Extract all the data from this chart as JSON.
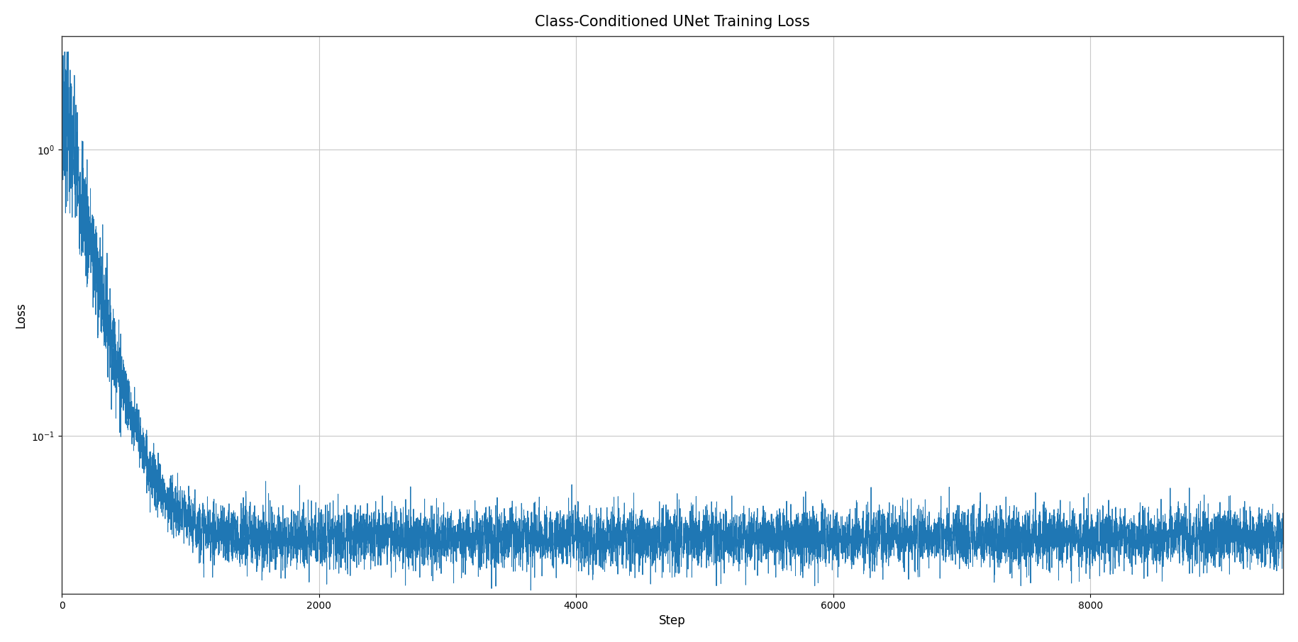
{
  "title": "Class-Conditioned UNet Training Loss",
  "xlabel": "Step",
  "ylabel": "Loss",
  "line_color": "#1f77b4",
  "line_width": 0.7,
  "background_color": "#ffffff",
  "grid_color": "#c8c8c8",
  "grid_linewidth": 0.8,
  "xlim": [
    0,
    9500
  ],
  "ylim_log": [
    0.028,
    2.5
  ],
  "total_steps": 9500,
  "title_fontsize": 15,
  "label_fontsize": 12,
  "figsize": [
    18.3,
    9.06
  ],
  "dpi": 100,
  "initial_loss": 1.55,
  "plateau_loss": 0.044,
  "decay_steps": 180,
  "noise_early_sigma": 0.25,
  "noise_late_sigma": 0.12,
  "noise_transition": 500
}
